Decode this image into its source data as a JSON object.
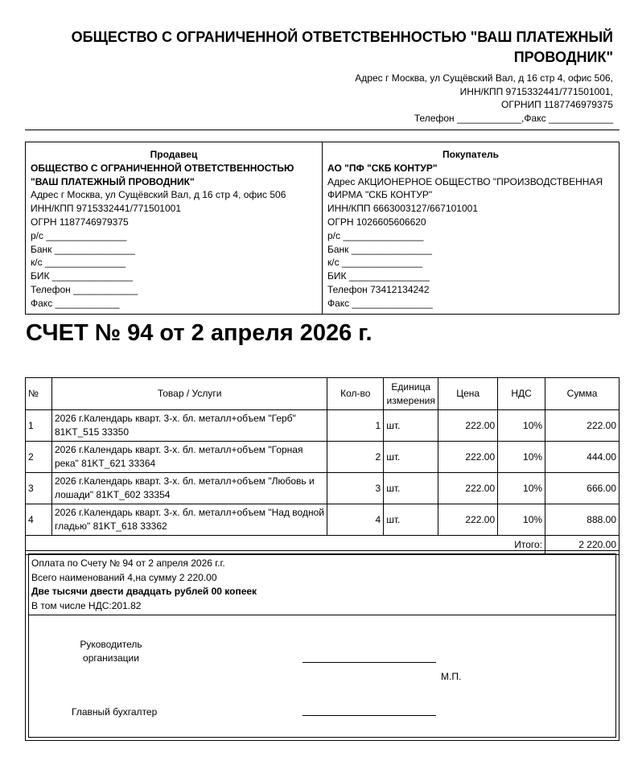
{
  "header": {
    "title": "ОБЩЕСТВО С ОГРАНИЧЕННОЙ ОТВЕТСТВЕННОСТЬЮ \"ВАШ ПЛАТЕЖНЫЙ ПРОВОДНИК\"",
    "address_lines": [
      "Адрес г Москва, ул Сущёвский Вал, д 16 стр 4, офис 506,",
      "ИНН/КПП 9715332441/771501001,",
      "ОГРНИП 1187746979375",
      "Телефон ____________,Факс ____________"
    ]
  },
  "seller": {
    "heading": "Продавец",
    "name": "ОБЩЕСТВО С ОГРАНИЧЕННОЙ ОТВЕТСТВЕННОСТЬЮ \"ВАШ ПЛАТЕЖНЫЙ ПРОВОДНИК\"",
    "lines": [
      "Адрес г Москва, ул Сущёвский Вал, д 16 стр 4, офис 506",
      "ИНН/КПП 9715332441/771501001",
      "ОГРН 1187746979375",
      "р/с _______________",
      "Банк _______________",
      "к/с _______________",
      "БИК _______________",
      "Телефон ____________",
      "Факс ____________"
    ]
  },
  "buyer": {
    "heading": "Покупатель",
    "name": "АО \"ПФ \"СКБ КОНТУР\"",
    "lines": [
      "Адрес АКЦИОНЕРНОЕ ОБЩЕСТВО \"ПРОИЗВОДСТВЕННАЯ ФИРМА \"СКБ КОНТУР\"",
      "ИНН/КПП 6663003127/667101001",
      "ОГРН 1026605606620",
      "р/с _______________",
      "Банк _______________",
      "к/с _______________",
      "БИК _______________",
      "Телефон 73412134242",
      "Факс _______________"
    ]
  },
  "invoice_title": "СЧЕТ № 94 от 2 апреля 2026 г.",
  "table": {
    "headers": [
      "№",
      "Товар / Услуги",
      "Кол-во",
      "Единица измерения",
      "Цена",
      "НДС",
      "Сумма"
    ],
    "rows": [
      [
        "1",
        "2026 г.Календарь кварт. 3-х. бл. металл+объем \"Герб\" 81KT_515 33350",
        "1",
        "шт.",
        "222.00",
        "10%",
        "222.00"
      ],
      [
        "2",
        "2026 г.Календарь кварт. 3-х. бл. металл+объем \"Горная река\" 81KT_621 33364",
        "2",
        "шт.",
        "222.00",
        "10%",
        "444.00"
      ],
      [
        "3",
        "2026 г.Календарь кварт. 3-х. бл. металл+объем \"Любовь и лошади\" 81KT_602 33354",
        "3",
        "шт.",
        "222.00",
        "10%",
        "666.00"
      ],
      [
        "4",
        "2026 г.Календарь кварт. 3-х. бл. металл+объем \"Над водной гладью\" 81KT_618 33362",
        "4",
        "шт.",
        "222.00",
        "10%",
        "888.00"
      ]
    ],
    "total_label": "Итого:",
    "total_value": "2 220.00"
  },
  "payment": {
    "line1": "Оплата по Счету № 94 от 2 апреля 2026 г.г.",
    "line2": "Всего наименований 4,на сумму 2 220.00",
    "line3": "Две тысячи двести двадцать рублей 00 копеек",
    "line4": "В том числе НДС:201.82"
  },
  "signatures": {
    "director": "Руководитель организации",
    "stamp": "М.П.",
    "accountant": "Главный бухгалтер"
  }
}
